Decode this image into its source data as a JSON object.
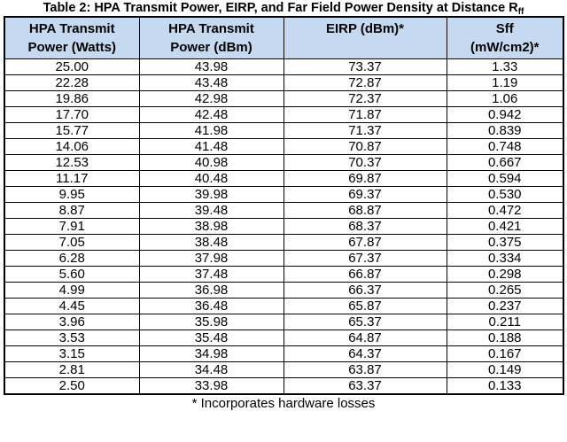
{
  "title": {
    "text": "Table 2: HPA Transmit Power, EIRP, and Far Field Power Density at Distance R",
    "subscript": "ff"
  },
  "table": {
    "headers": [
      {
        "line1": "HPA Transmit",
        "line2": "Power (Watts)"
      },
      {
        "line1": "HPA Transmit",
        "line2": "Power (dBm)"
      },
      {
        "line1": "EIRP (dBm)*",
        "line2": ""
      },
      {
        "line1": "Sff",
        "line2": "(mW/cm2)*"
      }
    ],
    "rows": [
      [
        "25.00",
        "43.98",
        "73.37",
        "1.33"
      ],
      [
        "22.28",
        "43.48",
        "72.87",
        "1.19"
      ],
      [
        "19.86",
        "42.98",
        "72.37",
        "1.06"
      ],
      [
        "17.70",
        "42.48",
        "71.87",
        "0.942"
      ],
      [
        "15.77",
        "41.98",
        "71.37",
        "0.839"
      ],
      [
        "14.06",
        "41.48",
        "70.87",
        "0.748"
      ],
      [
        "12.53",
        "40.98",
        "70.37",
        "0.667"
      ],
      [
        "11.17",
        "40.48",
        "69.87",
        "0.594"
      ],
      [
        "9.95",
        "39.98",
        "69.37",
        "0.530"
      ],
      [
        "8.87",
        "39.48",
        "68.87",
        "0.472"
      ],
      [
        "7.91",
        "38.98",
        "68.37",
        "0.421"
      ],
      [
        "7.05",
        "38.48",
        "67.87",
        "0.375"
      ],
      [
        "6.28",
        "37.98",
        "67.37",
        "0.334"
      ],
      [
        "5.60",
        "37.48",
        "66.87",
        "0.298"
      ],
      [
        "4.99",
        "36.98",
        "66.37",
        "0.265"
      ],
      [
        "4.45",
        "36.48",
        "65.87",
        "0.237"
      ],
      [
        "3.96",
        "35.98",
        "65.37",
        "0.211"
      ],
      [
        "3.53",
        "35.48",
        "64.87",
        "0.188"
      ],
      [
        "3.15",
        "34.98",
        "64.37",
        "0.167"
      ],
      [
        "2.81",
        "34.48",
        "63.87",
        "0.149"
      ],
      [
        "2.50",
        "33.98",
        "63.37",
        "0.133"
      ]
    ]
  },
  "footnote": "* Incorporates hardware losses",
  "colors": {
    "header_bg": "#c5d9f0",
    "border": "#000000",
    "text": "#000000",
    "page_bg": "#ffffff"
  }
}
